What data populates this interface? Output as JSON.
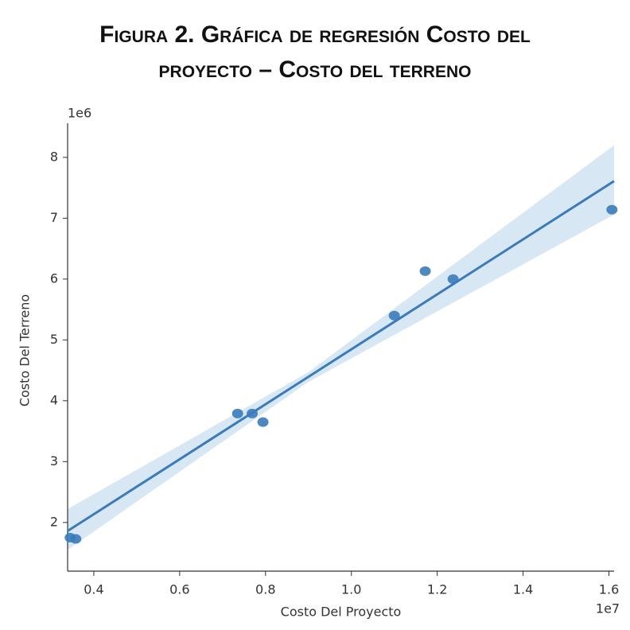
{
  "chart_data": {
    "type": "scatter",
    "title": "Figura 2. Gráfica de regresión Costo del proyecto – Costo del terreno",
    "x_label": "Costo Del Proyecto",
    "y_label": "Costo Del Terreno",
    "x_offset_label": "1e7",
    "y_offset_label": "1e6",
    "xlim": [
      0.339,
      1.612
    ],
    "ylim": [
      1.2,
      8.56
    ],
    "xticks": [
      0.4,
      0.6,
      0.8,
      {
        "value": 1.0,
        "label": "1.0"
      },
      1.2,
      1.4,
      1.6
    ],
    "yticks": [
      2,
      3,
      4,
      5,
      6,
      7,
      8
    ],
    "grid": false,
    "series": [
      {
        "name": "Costo Del Terreno",
        "color": "#3b7bb9",
        "x": [
          0.345,
          0.358,
          0.735,
          0.769,
          0.794,
          1.1,
          1.172,
          1.237,
          1.607
        ],
        "values": [
          1.75,
          1.73,
          3.79,
          3.79,
          3.65,
          5.4,
          6.13,
          6.0,
          7.14
        ]
      }
    ],
    "regression": {
      "color": "#3b7bb9",
      "band_color": "#d3e4f3",
      "x": [
        0.339,
        1.612
      ],
      "values": [
        1.86,
        7.61
      ],
      "band_x": [
        0.339,
        0.9,
        1.612
      ],
      "band_lower": [
        1.55,
        4.31,
        7.06
      ],
      "band_upper": [
        2.22,
        4.47,
        8.2
      ]
    }
  }
}
